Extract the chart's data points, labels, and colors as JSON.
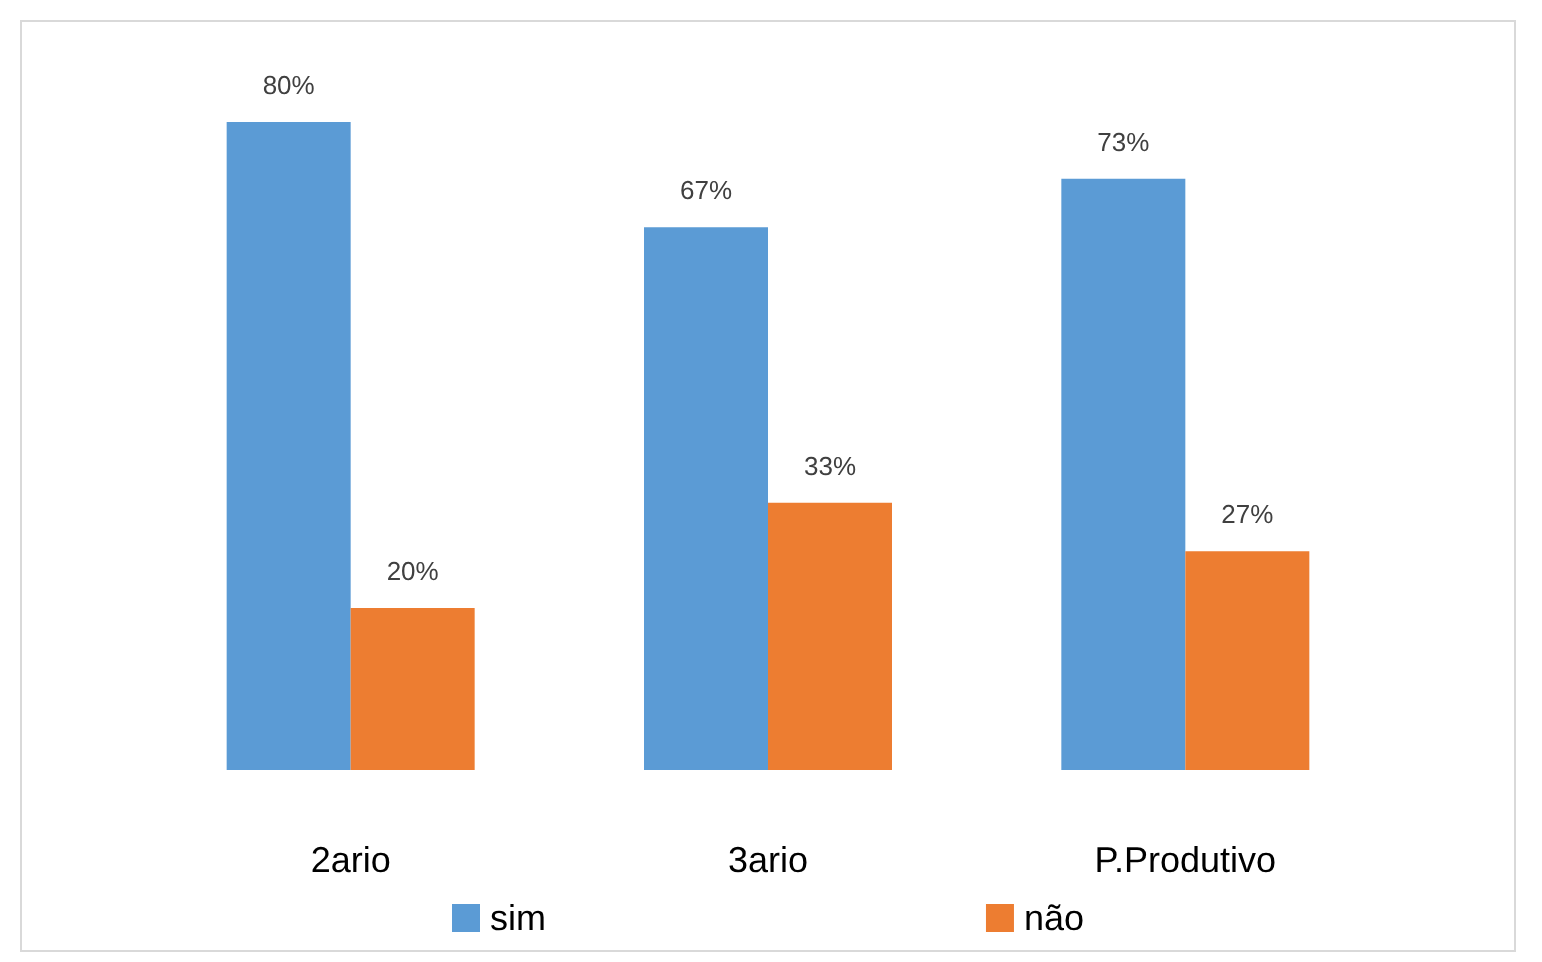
{
  "chart_data": {
    "type": "bar",
    "categories": [
      "2ario",
      "3ario",
      "P.Produtivo"
    ],
    "series": [
      {
        "name": "sim",
        "color": "#5b9bd5",
        "values": [
          80,
          67,
          73
        ],
        "value_labels": [
          "80%",
          "67%",
          "73%"
        ]
      },
      {
        "name": "não",
        "color": "#ed7d31",
        "values": [
          20,
          33,
          27
        ],
        "value_labels": [
          "20%",
          "33%",
          "27%"
        ]
      }
    ],
    "legend": "bottom"
  }
}
